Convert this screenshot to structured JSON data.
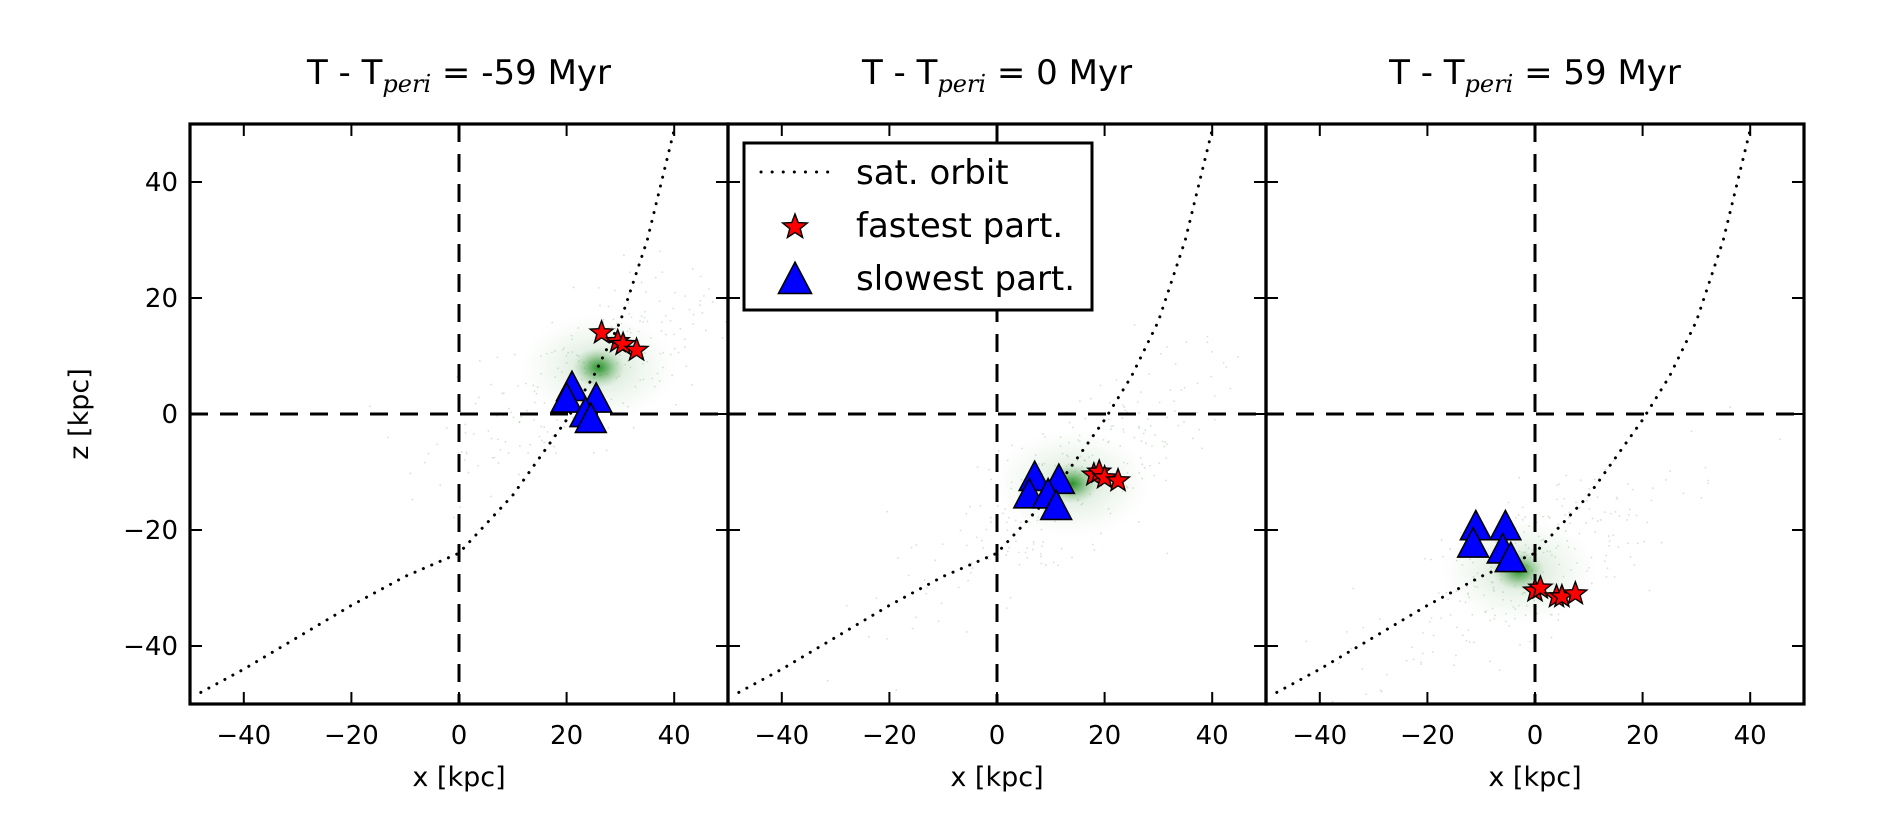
{
  "chart_data": {
    "type": "scatter",
    "ylabel": "z [kpc]",
    "xlabel": "x [kpc]",
    "xlim": [
      -50,
      50
    ],
    "ylim": [
      -50,
      50
    ],
    "xticks": [
      -40,
      -20,
      0,
      20,
      40
    ],
    "yticks": [
      40,
      20,
      0,
      -20,
      -40
    ],
    "reference_lines": {
      "x": 0,
      "y": 0,
      "style": "dashed"
    },
    "legend": {
      "placement": "upper-left of middle panel",
      "entries": [
        {
          "label": "sat. orbit",
          "marker": "dotted-line",
          "color": "#000000"
        },
        {
          "label": "fastest part.",
          "marker": "star",
          "color": "#ff0000"
        },
        {
          "label": "slowest part.",
          "marker": "triangle",
          "color": "#0000ff"
        }
      ]
    },
    "orbit": {
      "name": "sat. orbit",
      "x": [
        -48,
        -40,
        -30,
        -20,
        -10,
        0,
        10,
        15,
        20,
        25,
        30,
        35,
        40
      ],
      "z": [
        -48,
        -44,
        -38.5,
        -33,
        -28,
        -24,
        -14,
        -7.5,
        -1,
        6.5,
        16,
        30,
        49
      ]
    },
    "panels": [
      {
        "title_main": "T - T",
        "title_sub": "peri",
        "title_rest": " = -59 Myr",
        "blob_center": [
          26,
          8
        ],
        "fastest": [
          [
            26.5,
            14
          ],
          [
            29.5,
            12.5
          ],
          [
            30.5,
            12
          ],
          [
            33,
            11
          ]
        ],
        "slowest": [
          [
            21,
            4.5
          ],
          [
            20,
            2.5
          ],
          [
            25.5,
            2.5
          ],
          [
            23.5,
            0
          ],
          [
            24.5,
            -1
          ]
        ]
      },
      {
        "title_main": "T - T",
        "title_sub": "peri",
        "title_rest": " = 0 Myr",
        "blob_center": [
          14,
          -12
        ],
        "fastest": [
          [
            18,
            -10.5
          ],
          [
            19,
            -10
          ],
          [
            20,
            -11
          ],
          [
            22.5,
            -11.5
          ]
        ],
        "slowest": [
          [
            7,
            -11
          ],
          [
            6,
            -14
          ],
          [
            11.5,
            -11.5
          ],
          [
            9.5,
            -14
          ],
          [
            11,
            -16
          ]
        ]
      },
      {
        "title_main": "T - T",
        "title_sub": "peri",
        "title_rest": " = 59 Myr",
        "blob_center": [
          -3,
          -27
        ],
        "fastest": [
          [
            0,
            -30.5
          ],
          [
            1,
            -30
          ],
          [
            4,
            -31.5
          ],
          [
            5,
            -31.5
          ],
          [
            7.5,
            -31
          ]
        ],
        "slowest": [
          [
            -11,
            -19.5
          ],
          [
            -11.5,
            -22.5
          ],
          [
            -5.5,
            -19.5
          ],
          [
            -6,
            -23.5
          ],
          [
            -4.5,
            -25
          ]
        ]
      }
    ]
  }
}
